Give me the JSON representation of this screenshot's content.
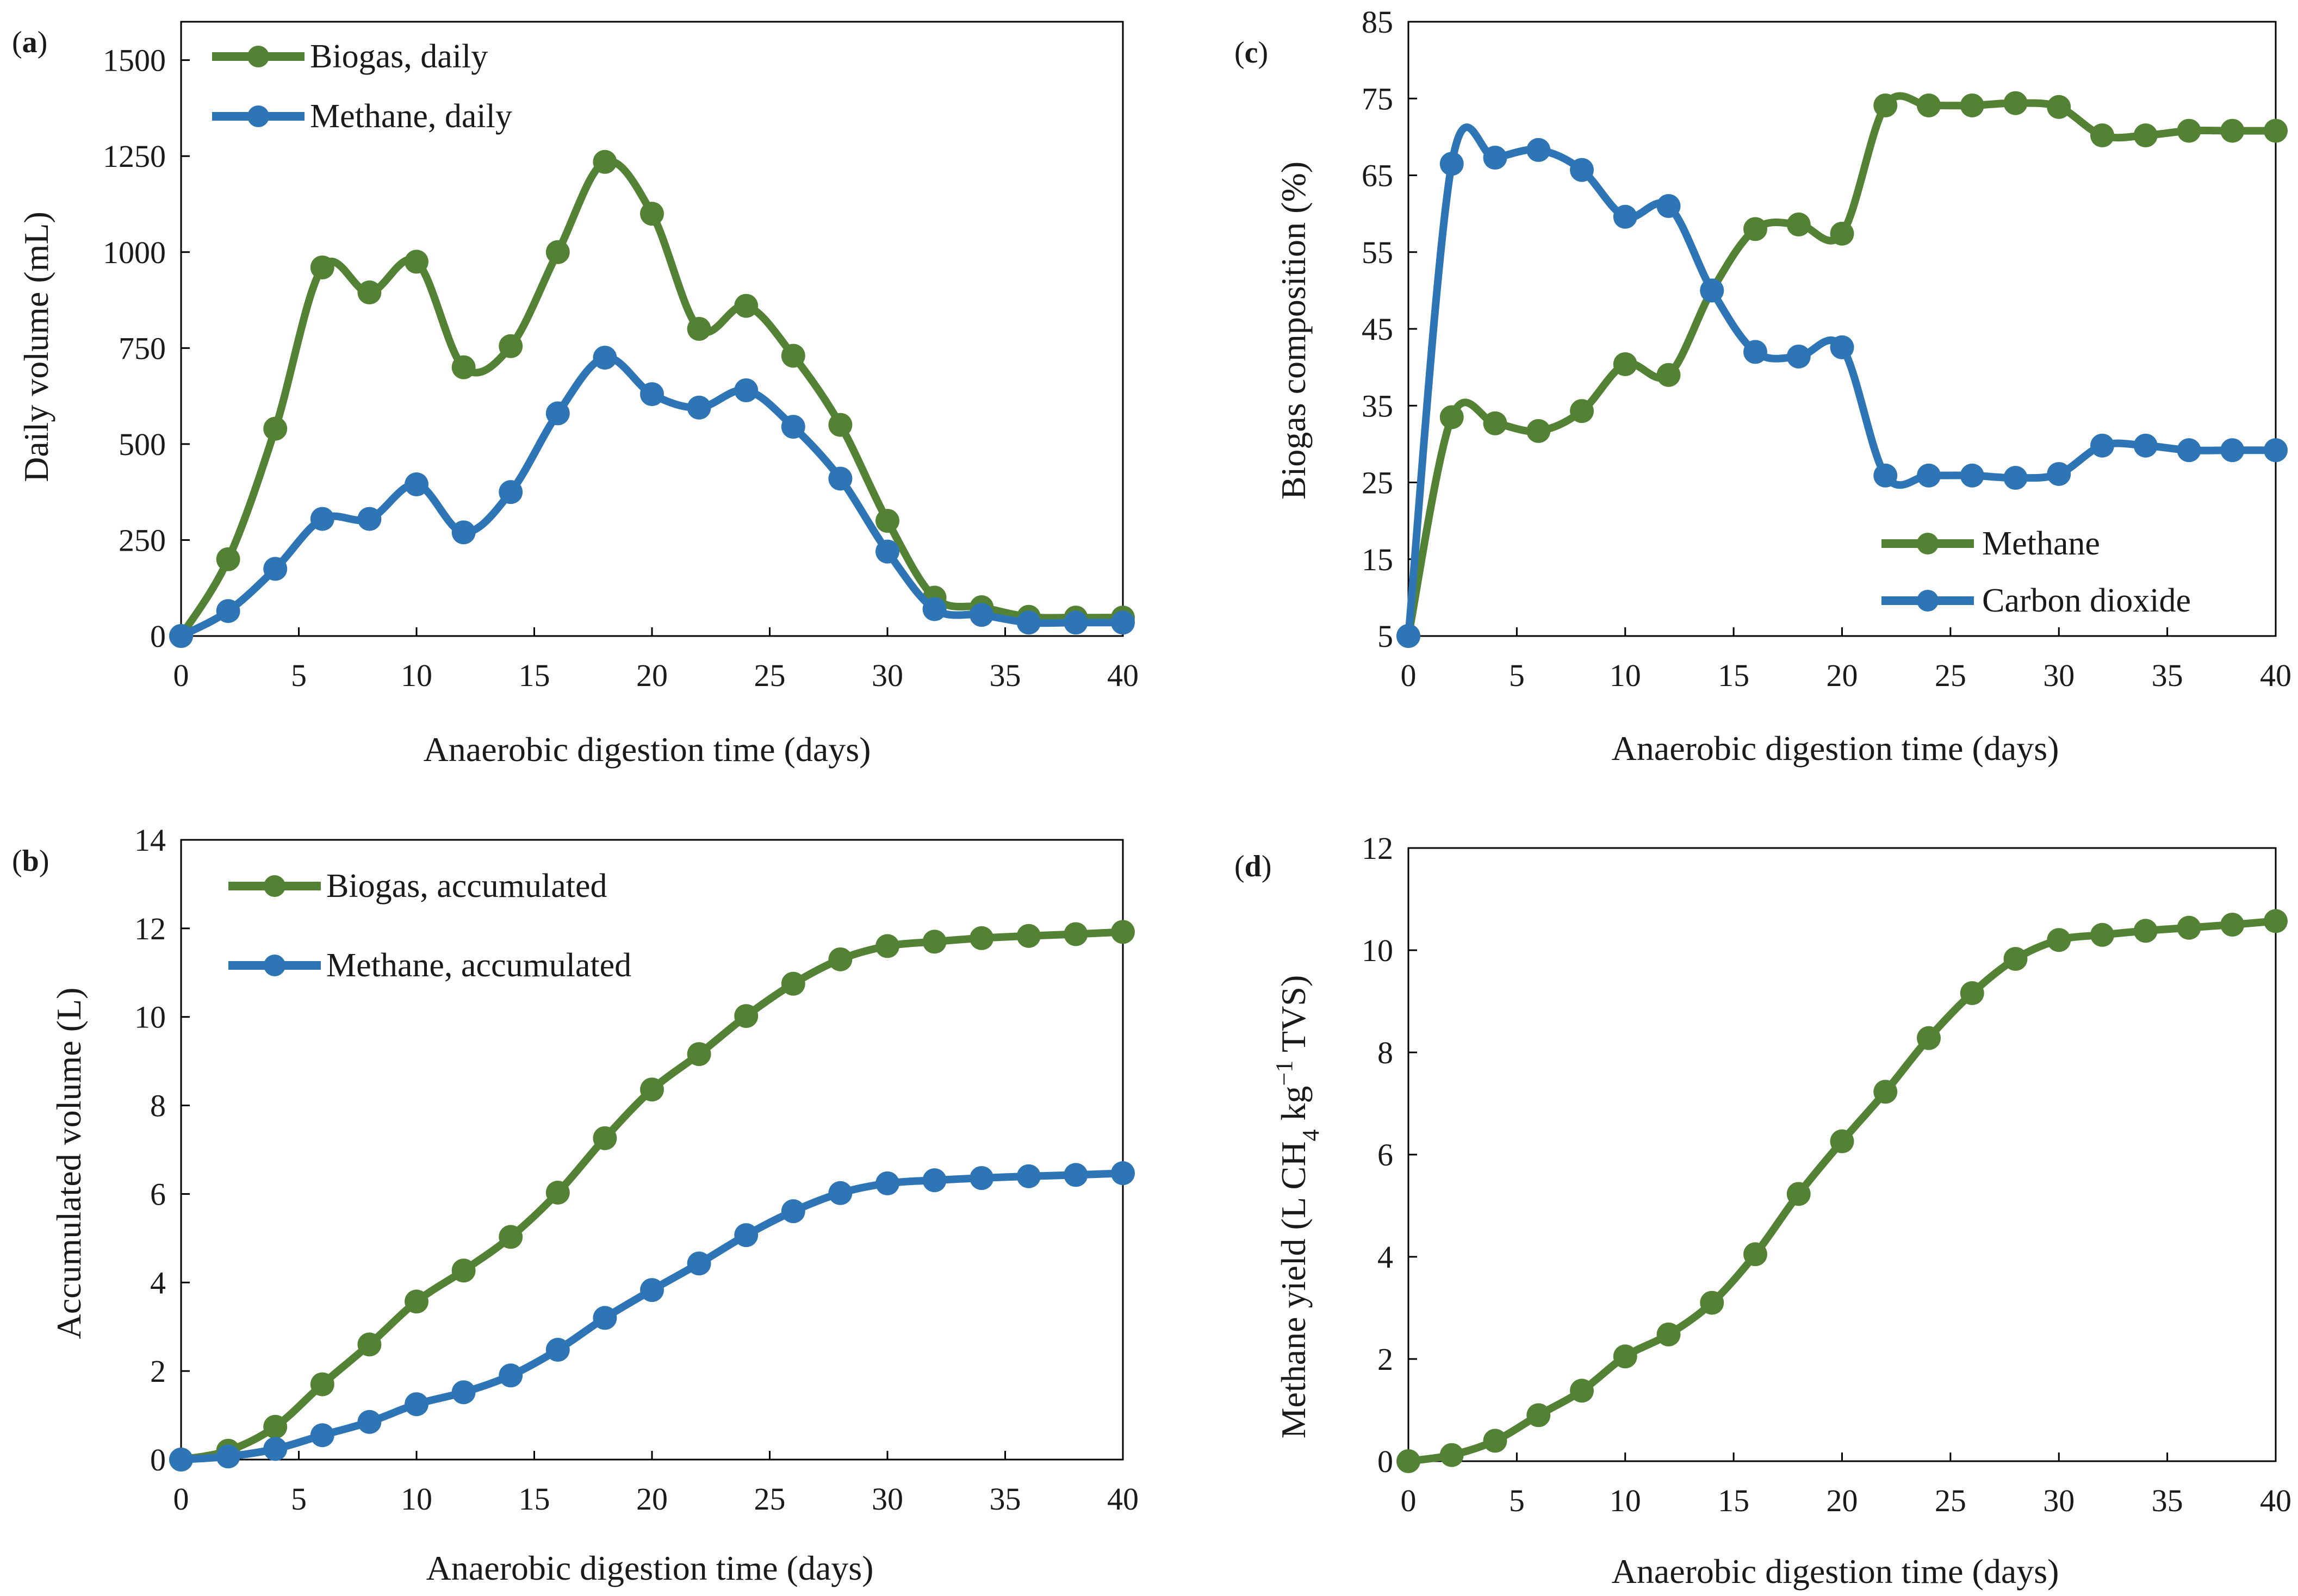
{
  "colors": {
    "green": "#548235",
    "blue": "#2E75B6",
    "axis": "#000000"
  },
  "chart_data": [
    {
      "panel": "(a)",
      "panel_letter": "a",
      "type": "line",
      "xlabel": "Anaerobic digestion time (days)",
      "ylabel": "Daily volume (mL)",
      "xlim": [
        0,
        40
      ],
      "ylim": [
        0,
        1600
      ],
      "xticks": [
        0,
        5,
        10,
        15,
        20,
        25,
        30,
        35,
        40
      ],
      "yticks": [
        0,
        250,
        500,
        750,
        1000,
        1250,
        1500
      ],
      "legend_position": "top-left",
      "x": [
        0,
        2,
        4,
        6,
        8,
        10,
        12,
        14,
        16,
        18,
        20,
        22,
        24,
        26,
        28,
        30,
        32,
        34,
        36,
        38,
        40
      ],
      "series": [
        {
          "name": "Biogas, daily",
          "color": "#548235",
          "values": [
            0,
            200,
            540,
            960,
            895,
            975,
            700,
            755,
            1000,
            1235,
            1100,
            800,
            860,
            730,
            550,
            300,
            100,
            75,
            50,
            48,
            48
          ]
        },
        {
          "name": "Methane, daily",
          "color": "#2E75B6",
          "values": [
            0,
            65,
            175,
            305,
            305,
            395,
            270,
            375,
            580,
            725,
            630,
            595,
            640,
            545,
            410,
            220,
            70,
            55,
            35,
            35,
            35
          ]
        }
      ]
    },
    {
      "panel": "(b)",
      "panel_letter": "b",
      "type": "line",
      "xlabel": "Anaerobic digestion time (days)",
      "ylabel": "Accumulated volume (L)",
      "xlim": [
        0,
        40
      ],
      "ylim": [
        0,
        14
      ],
      "xticks": [
        0,
        5,
        10,
        15,
        20,
        25,
        30,
        35,
        40
      ],
      "yticks": [
        0,
        2,
        4,
        6,
        8,
        10,
        12,
        14
      ],
      "legend_position": "top-left",
      "x": [
        0,
        2,
        4,
        6,
        8,
        10,
        12,
        14,
        16,
        18,
        20,
        22,
        24,
        26,
        28,
        30,
        32,
        34,
        36,
        38,
        40
      ],
      "series": [
        {
          "name": "Biogas, accumulated",
          "color": "#548235",
          "values": [
            0,
            0.2,
            0.74,
            1.7,
            2.6,
            3.57,
            4.27,
            5.03,
            6.03,
            7.26,
            8.36,
            9.16,
            10.02,
            10.75,
            11.3,
            11.6,
            11.7,
            11.78,
            11.83,
            11.87,
            11.92
          ]
        },
        {
          "name": "Methane, accumulated",
          "color": "#2E75B6",
          "values": [
            0,
            0.07,
            0.24,
            0.55,
            0.85,
            1.25,
            1.52,
            1.9,
            2.48,
            3.2,
            3.83,
            4.43,
            5.07,
            5.61,
            6.02,
            6.24,
            6.31,
            6.36,
            6.4,
            6.43,
            6.47
          ]
        }
      ]
    },
    {
      "panel": "(c)",
      "panel_letter": "c",
      "type": "line",
      "xlabel": "Anaerobic digestion time (days)",
      "ylabel": "Biogas composition (%)",
      "xlim": [
        0,
        40
      ],
      "ylim": [
        5,
        85
      ],
      "xticks": [
        0,
        5,
        10,
        15,
        20,
        25,
        30,
        35,
        40
      ],
      "yticks": [
        5,
        15,
        25,
        35,
        45,
        55,
        65,
        75,
        85
      ],
      "legend_position": "bottom-right",
      "x": [
        0,
        2,
        4,
        6,
        8,
        10,
        12,
        14,
        16,
        18,
        20,
        22,
        24,
        26,
        28,
        30,
        32,
        34,
        36,
        38,
        40
      ],
      "series": [
        {
          "name": "Methane",
          "color": "#548235",
          "values": [
            5,
            33.5,
            32.7,
            31.7,
            34.3,
            40.4,
            39,
            50,
            58,
            58.6,
            57.4,
            74.1,
            74.1,
            74.1,
            74.4,
            73.9,
            70.2,
            70.2,
            70.8,
            70.8,
            70.8
          ]
        },
        {
          "name": "Carbon dioxide",
          "color": "#2E75B6",
          "values": [
            5,
            66.5,
            67.3,
            68.3,
            65.7,
            59.6,
            61,
            50,
            42,
            41.4,
            42.6,
            25.9,
            25.9,
            25.9,
            25.6,
            26.1,
            29.8,
            29.8,
            29.2,
            29.2,
            29.2
          ]
        }
      ]
    },
    {
      "panel": "(d)",
      "panel_letter": "d",
      "type": "line",
      "xlabel": "Anaerobic digestion time (days)",
      "ylabel": "Methane yield (L CH4 kg−1 TVS)",
      "ylabel_parts": {
        "a": "Methane yield (L CH",
        "sub": "4",
        "b": " kg",
        "sup": "−1",
        "c": " TVS)"
      },
      "xlim": [
        0,
        40
      ],
      "ylim": [
        0,
        12
      ],
      "xticks": [
        0,
        5,
        10,
        15,
        20,
        25,
        30,
        35,
        40
      ],
      "yticks": [
        0,
        2,
        4,
        6,
        8,
        10,
        12
      ],
      "legend_position": "none",
      "x": [
        0,
        2,
        4,
        6,
        8,
        10,
        12,
        14,
        16,
        18,
        20,
        22,
        24,
        26,
        28,
        30,
        32,
        34,
        36,
        38,
        40
      ],
      "series": [
        {
          "name": "Methane yield",
          "color": "#548235",
          "values": [
            0,
            0.12,
            0.4,
            0.9,
            1.38,
            2.05,
            2.48,
            3.1,
            4.05,
            5.23,
            6.26,
            7.23,
            8.28,
            9.16,
            9.83,
            10.2,
            10.3,
            10.38,
            10.44,
            10.5,
            10.57
          ]
        }
      ]
    }
  ]
}
